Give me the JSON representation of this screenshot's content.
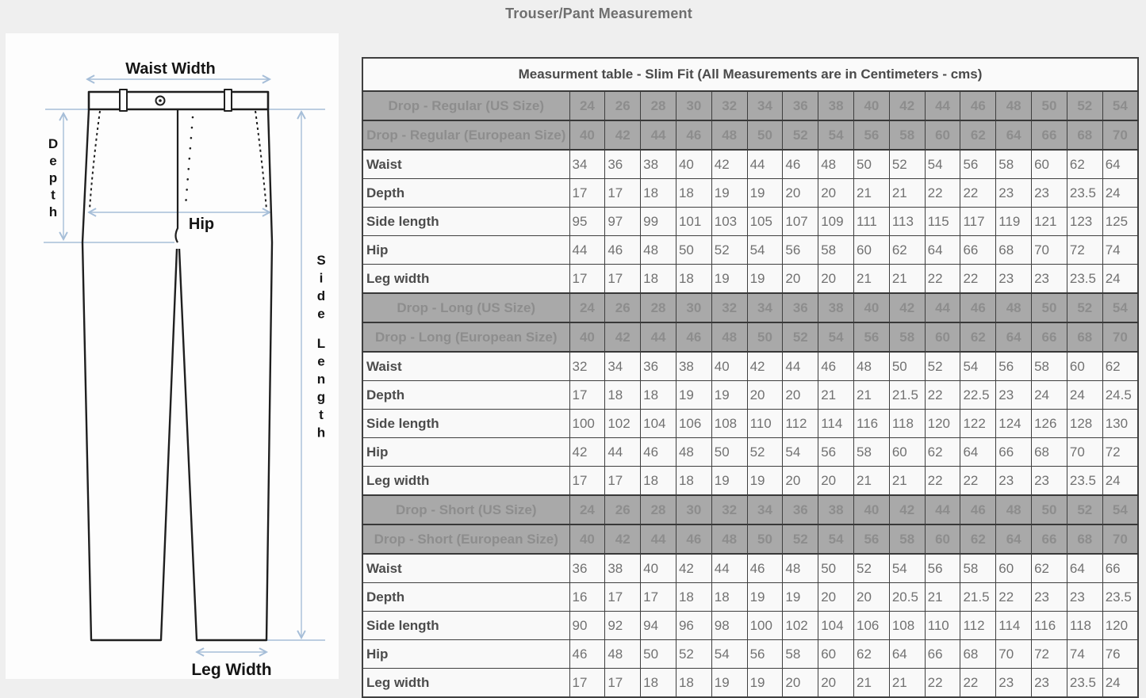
{
  "page": {
    "title": "Trouser/Pant Measurement"
  },
  "diagram": {
    "labels": {
      "waist_width": "Waist Width",
      "depth": "Depth",
      "hip": "Hip",
      "side_length": "Side Length",
      "leg_width": "Leg Width"
    },
    "colors": {
      "arrow": "#a6bed8",
      "line": "#1f1f1f",
      "card_bg": "#fdfdfd"
    }
  },
  "table": {
    "title": "Measurment table - Slim Fit (All Measurements are in Centimeters - cms)",
    "colors": {
      "header_bg": "#a9a9a9",
      "header_text": "#8d8d8d",
      "row_bg": "#f9f9f9",
      "label_text": "#4c4c4c",
      "value_text": "#717171",
      "border": "#3f3f3f"
    },
    "sections": [
      {
        "us_label": "Drop - Regular (US Size)",
        "us_sizes": [
          24,
          26,
          28,
          30,
          32,
          34,
          36,
          38,
          40,
          42,
          44,
          46,
          48,
          50,
          52,
          54
        ],
        "eu_label": "Drop - Regular (European Size)",
        "eu_sizes": [
          40,
          42,
          44,
          46,
          48,
          50,
          52,
          54,
          56,
          58,
          60,
          62,
          64,
          66,
          68,
          70
        ],
        "rows": [
          {
            "label": "Waist",
            "values": [
              34,
              36,
              38,
              40,
              42,
              44,
              46,
              48,
              50,
              52,
              54,
              56,
              58,
              60,
              62,
              64
            ]
          },
          {
            "label": "Depth",
            "values": [
              17,
              17,
              18,
              18,
              19,
              19,
              20,
              20,
              21,
              21,
              22,
              22,
              23,
              23,
              23.5,
              24
            ]
          },
          {
            "label": "Side length",
            "values": [
              95,
              97,
              99,
              101,
              103,
              105,
              107,
              109,
              111,
              113,
              115,
              117,
              119,
              121,
              123,
              125
            ]
          },
          {
            "label": "Hip",
            "values": [
              44,
              46,
              48,
              50,
              52,
              54,
              56,
              58,
              60,
              62,
              64,
              66,
              68,
              70,
              72,
              74
            ]
          },
          {
            "label": "Leg width",
            "values": [
              17,
              17,
              18,
              18,
              19,
              19,
              20,
              20,
              21,
              21,
              22,
              22,
              23,
              23,
              23.5,
              24
            ]
          }
        ]
      },
      {
        "us_label": "Drop - Long (US Size)",
        "us_sizes": [
          24,
          26,
          28,
          30,
          32,
          34,
          36,
          38,
          40,
          42,
          44,
          46,
          48,
          50,
          52,
          54
        ],
        "eu_label": "Drop - Long (European Size)",
        "eu_sizes": [
          40,
          42,
          44,
          46,
          48,
          50,
          52,
          54,
          56,
          58,
          60,
          62,
          64,
          66,
          68,
          70
        ],
        "rows": [
          {
            "label": "Waist",
            "values": [
              32,
              34,
              36,
              38,
              40,
              42,
              44,
              46,
              48,
              50,
              52,
              54,
              56,
              58,
              60,
              62
            ]
          },
          {
            "label": "Depth",
            "values": [
              17,
              18,
              18,
              19,
              19,
              20,
              20,
              21,
              21,
              21.5,
              22,
              22.5,
              23,
              24,
              24,
              24.5
            ]
          },
          {
            "label": "Side length",
            "values": [
              100,
              102,
              104,
              106,
              108,
              110,
              112,
              114,
              116,
              118,
              120,
              122,
              124,
              126,
              128,
              130
            ]
          },
          {
            "label": "Hip",
            "values": [
              42,
              44,
              46,
              48,
              50,
              52,
              54,
              56,
              58,
              60,
              62,
              64,
              66,
              68,
              70,
              72
            ]
          },
          {
            "label": "Leg width",
            "values": [
              17,
              17,
              18,
              18,
              19,
              19,
              20,
              20,
              21,
              21,
              22,
              22,
              23,
              23,
              23.5,
              24
            ]
          }
        ]
      },
      {
        "us_label": "Drop - Short (US Size)",
        "us_sizes": [
          24,
          26,
          28,
          30,
          32,
          34,
          36,
          38,
          40,
          42,
          44,
          46,
          48,
          50,
          52,
          54
        ],
        "eu_label": "Drop - Short (European Size)",
        "eu_sizes": [
          40,
          42,
          44,
          46,
          48,
          50,
          52,
          54,
          56,
          58,
          60,
          62,
          64,
          66,
          68,
          70
        ],
        "rows": [
          {
            "label": "Waist",
            "values": [
              36,
              38,
              40,
              42,
              44,
              46,
              48,
              50,
              52,
              54,
              56,
              58,
              60,
              62,
              64,
              66
            ]
          },
          {
            "label": "Depth",
            "values": [
              16,
              17,
              17,
              18,
              18,
              19,
              19,
              20,
              20,
              20.5,
              21,
              21.5,
              22,
              23,
              23,
              23.5
            ]
          },
          {
            "label": "Side length",
            "values": [
              90,
              92,
              94,
              96,
              98,
              100,
              102,
              104,
              106,
              108,
              110,
              112,
              114,
              116,
              118,
              120
            ]
          },
          {
            "label": "Hip",
            "values": [
              46,
              48,
              50,
              52,
              54,
              56,
              58,
              60,
              62,
              64,
              66,
              68,
              70,
              72,
              74,
              76
            ]
          },
          {
            "label": "Leg width",
            "values": [
              17,
              17,
              18,
              18,
              19,
              19,
              20,
              20,
              21,
              21,
              22,
              22,
              23,
              23,
              23.5,
              24
            ]
          }
        ]
      }
    ]
  }
}
